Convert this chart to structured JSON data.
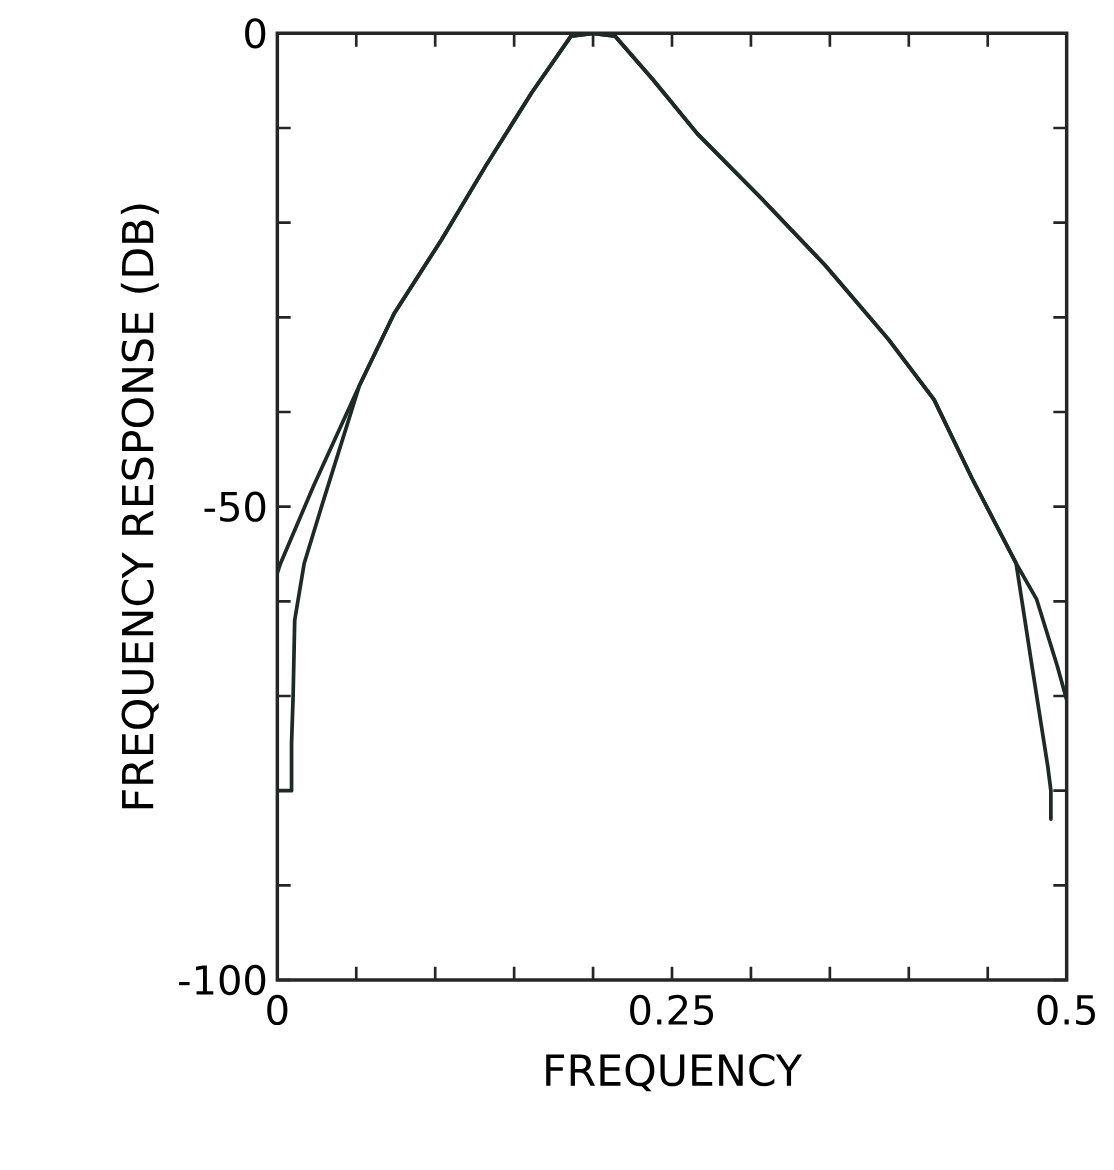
{
  "chart_data": {
    "type": "line",
    "xlabel": "FREQUENCY",
    "ylabel": "FREQUENCY RESPONSE (DB)",
    "xlim": [
      0,
      0.5
    ],
    "ylim": [
      -100,
      0
    ],
    "xticks": [
      0,
      {
        "value": 0.05,
        "label": null
      },
      {
        "value": 0.1,
        "label": null
      },
      {
        "value": 0.15,
        "label": null
      },
      {
        "value": 0.2,
        "label": null
      },
      0.25,
      {
        "value": 0.3,
        "label": null
      },
      {
        "value": 0.35,
        "label": null
      },
      {
        "value": 0.4,
        "label": null
      },
      {
        "value": 0.45,
        "label": null
      },
      0.5
    ],
    "yticks": [
      -100,
      {
        "value": -90,
        "label": null
      },
      {
        "value": -80,
        "label": null
      },
      {
        "value": -70,
        "label": null
      },
      {
        "value": -60,
        "label": null
      },
      -50,
      {
        "value": -40,
        "label": null
      },
      {
        "value": -30,
        "label": null
      },
      {
        "value": -20,
        "label": null
      },
      {
        "value": -10,
        "label": null
      },
      0
    ],
    "grid": false,
    "marker": "none",
    "line_style": "solid",
    "series": [
      {
        "color": "#1e2a26",
        "x": [
          0,
          0.002,
          0.023,
          0.052,
          0.074,
          0.104,
          0.132,
          0.161,
          0.186,
          0.2,
          0.214,
          0.238,
          0.266,
          0.307,
          0.347,
          0.387,
          0.416,
          0.44,
          0.468,
          0.481,
          0.494,
          0.5
        ],
        "values": [
          -57,
          -56,
          -47.8,
          -37.2,
          -29.6,
          -21.8,
          -14,
          -6.3,
          -0.3,
          0,
          -0.3,
          -4.9,
          -10.6,
          -17.5,
          -24.5,
          -32.3,
          -38.7,
          -47,
          -56,
          -59.8,
          -66.8,
          -70.4
        ]
      },
      {
        "color": "#1e2a26",
        "x": [
          0,
          0.009,
          0.009,
          0.01,
          0.011,
          0.017,
          0.028,
          0.052,
          0.074,
          0.104,
          0.132,
          0.161,
          0.186,
          0.2,
          0.214,
          0.238,
          0.266,
          0.307,
          0.347,
          0.387,
          0.416,
          0.44,
          0.468,
          0.478,
          0.488,
          0.49,
          0.49
        ],
        "values": [
          -80,
          -80,
          -75,
          -70,
          -62,
          -56,
          -50,
          -37.2,
          -29.6,
          -21.8,
          -14,
          -6.3,
          -0.3,
          0,
          -0.3,
          -4.9,
          -10.6,
          -17.5,
          -24.5,
          -32.3,
          -38.7,
          -47,
          -56,
          -66.8,
          -77.4,
          -80,
          -83
        ]
      }
    ]
  }
}
